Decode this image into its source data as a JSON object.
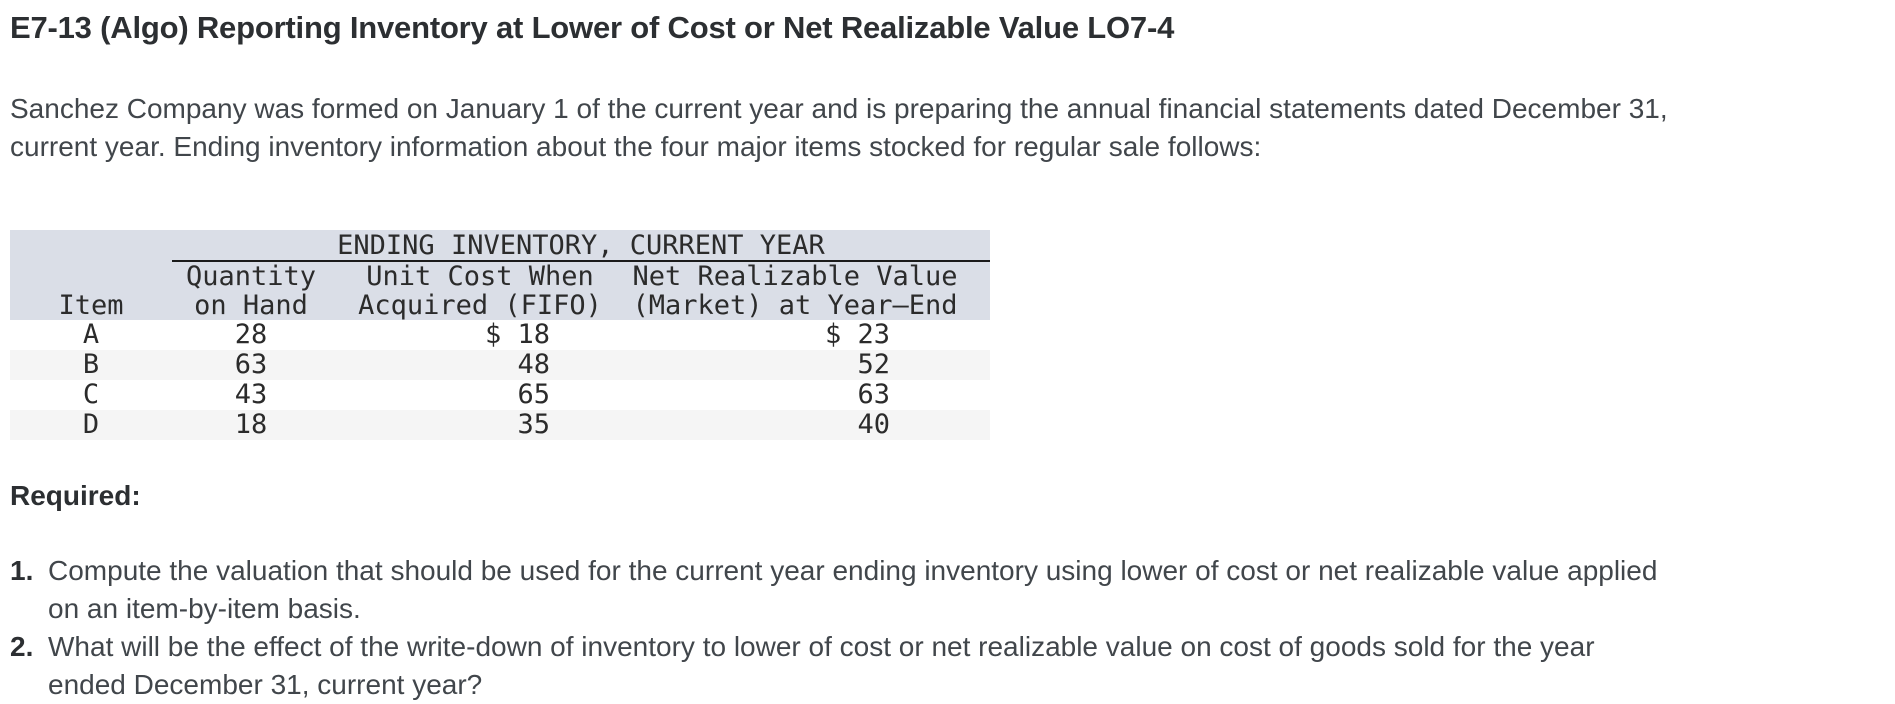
{
  "title": "E7-13 (Algo) Reporting Inventory at Lower of Cost or Net Realizable Value LO7-4",
  "intro": "Sanchez Company was formed on January 1 of the current year and is preparing the annual financial statements dated December 31,\ncurrent year. Ending inventory information about the four major items stocked for regular sale follows:",
  "table": {
    "caption": "ENDING INVENTORY, CURRENT YEAR",
    "columns": {
      "item": "Item",
      "quantity": "Quantity\non Hand",
      "unit_cost": "Unit Cost When\nAcquired (FIFO)",
      "nrv": "Net Realizable Value\n(Market) at Year–End"
    },
    "rows": [
      {
        "item": "A",
        "quantity": "28",
        "unit_cost": "$ 18",
        "nrv": "$ 23"
      },
      {
        "item": "B",
        "quantity": "63",
        "unit_cost": "48",
        "nrv": "52"
      },
      {
        "item": "C",
        "quantity": "43",
        "unit_cost": "65",
        "nrv": "63"
      },
      {
        "item": "D",
        "quantity": "18",
        "unit_cost": "35",
        "nrv": "40"
      }
    ]
  },
  "required": {
    "label": "Required:",
    "items": [
      {
        "number": "1.",
        "text": "Compute the valuation that should be used for the current year ending inventory using lower of cost or net realizable value applied\non an item-by-item basis."
      },
      {
        "number": "2.",
        "text": "What will be the effect of the write-down of inventory to lower of cost or net realizable value on cost of goods sold for the year\nended December 31, current year?"
      }
    ]
  },
  "colors": {
    "header_bg": "#dadee7",
    "stripe_bg": "#f5f5f5",
    "heading_color": "#2c2f32",
    "body_color": "#41464b",
    "table_text": "#2b2b2b",
    "rule_color": "#1b1b1b"
  }
}
